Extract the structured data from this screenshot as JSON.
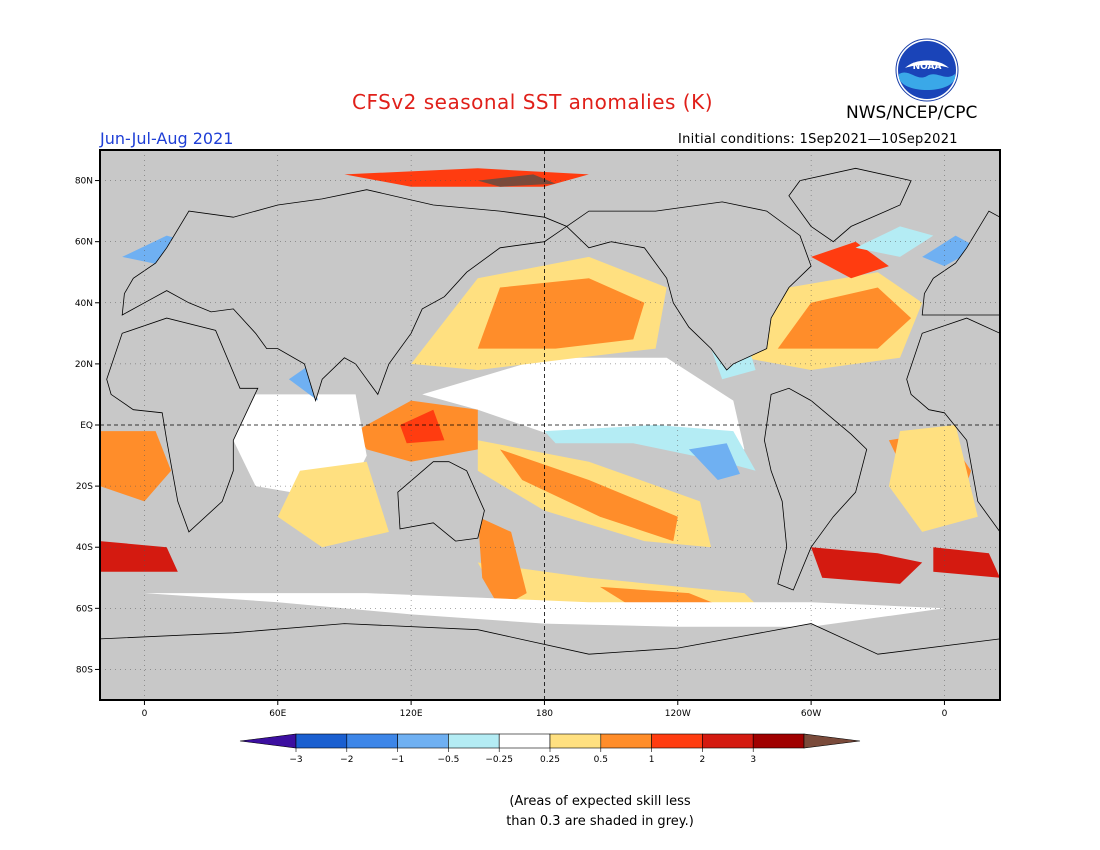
{
  "title": "CFSv2 seasonal SST anomalies (K)",
  "season": "Jun-Jul-Aug 2021",
  "agency": "NWS/NCEP/CPC",
  "initial_conditions": "Initial conditions: 1Sep2021—10Sep2021",
  "logo_text": "NOAA",
  "skill_note": "(Areas of expected skill less\nthan 0.3 are shaded in grey.)",
  "map": {
    "projection": "equirectangular",
    "lon_range": [
      -20,
      385
    ],
    "lat_range": [
      -90,
      90
    ],
    "land_color": "#000000",
    "ocean_grey": "#c8c8c8",
    "lat_labels": [
      "80N",
      "60N",
      "40N",
      "20N",
      "EQ",
      "20S",
      "40S",
      "60S",
      "80S"
    ],
    "lat_values": [
      80,
      60,
      40,
      20,
      0,
      -20,
      -40,
      -60,
      -80
    ],
    "lon_labels": [
      "0",
      "60E",
      "120E",
      "180",
      "120W",
      "60W",
      "0"
    ],
    "lon_values": [
      0,
      60,
      120,
      180,
      240,
      300,
      360
    ]
  },
  "colorbar": {
    "labels": [
      "-3",
      "-2",
      "-1",
      "-0.5",
      "-0.25",
      "0.25",
      "0.5",
      "1",
      "2",
      "3"
    ],
    "colors": [
      "#3c0fa0",
      "#1a5fd0",
      "#3d86e8",
      "#6fb0f2",
      "#b4ecf4",
      "#ffffff",
      "#ffe080",
      "#ff8d2a",
      "#ff3c10",
      "#d41a10",
      "#a00000",
      "#7a4a3a"
    ]
  }
}
